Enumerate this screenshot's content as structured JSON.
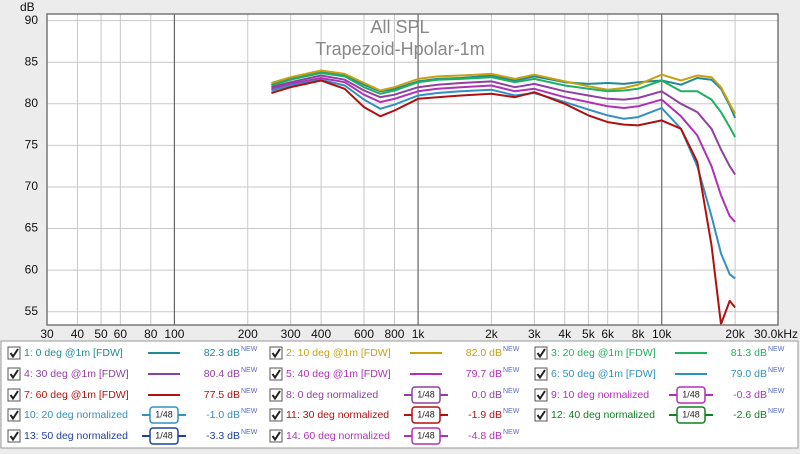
{
  "chart_data": {
    "type": "line",
    "title": "All SPL",
    "subtitle": "Trapezoid-Hpolar-1m",
    "y_label": "dB",
    "log_x": true,
    "grid": true,
    "xlim": [
      30,
      30000
    ],
    "ylim": [
      53.4,
      90.8
    ],
    "xticks": [
      30,
      40,
      50,
      60,
      80,
      100,
      200,
      300,
      400,
      600,
      800,
      {
        "value": 1000,
        "label": "1k"
      },
      {
        "value": 2000,
        "label": "2k"
      },
      {
        "value": 3000,
        "label": "3k"
      },
      {
        "value": 4000,
        "label": "4k"
      },
      {
        "value": 5000,
        "label": "5k"
      },
      {
        "value": 6000,
        "label": "6k"
      },
      {
        "value": 8000,
        "label": "8k"
      },
      {
        "value": 10000,
        "label": "10k"
      },
      {
        "value": 20000,
        "label": "20k"
      },
      {
        "value": 30000,
        "label": "30.0kHz"
      }
    ],
    "yticks": [
      55,
      60,
      65,
      70,
      75,
      80,
      85,
      90
    ],
    "x": [
      250,
      300,
      400,
      500,
      600,
      700,
      800,
      1000,
      1200,
      1500,
      2000,
      2500,
      3000,
      4000,
      5000,
      6000,
      7000,
      8000,
      10000,
      12000,
      14000,
      16000,
      17500,
      19000,
      20000
    ],
    "badge": "NEW",
    "smoothing_label": "1/48",
    "series": [
      {
        "name": "1: 0 deg @1m [FDW]",
        "color": "#1f8a96",
        "value_label": "82.3 dB",
        "values": [
          82.3,
          83.0,
          83.9,
          83.5,
          82.3,
          81.5,
          81.8,
          82.7,
          83.0,
          83.1,
          83.4,
          82.8,
          83.3,
          82.6,
          82.4,
          82.5,
          82.4,
          82.6,
          82.8,
          82.3,
          83.1,
          82.9,
          81.8,
          79.8,
          78.3
        ]
      },
      {
        "name": "2: 10 deg @1m [FDW]",
        "color": "#c8a010",
        "value_label": "82.0 dB",
        "values": [
          82.5,
          83.2,
          84.0,
          83.6,
          82.5,
          81.6,
          82.0,
          83.0,
          83.3,
          83.4,
          83.6,
          83.0,
          83.5,
          82.7,
          82.1,
          81.7,
          81.9,
          82.3,
          83.5,
          82.8,
          83.4,
          83.2,
          82.0,
          80.0,
          78.8
        ]
      },
      {
        "name": "3: 20 deg @1m [FDW]",
        "color": "#20b060",
        "value_label": "81.3 dB",
        "values": [
          82.2,
          82.9,
          83.7,
          83.3,
          82.0,
          81.2,
          81.6,
          82.6,
          82.9,
          83.0,
          83.2,
          82.6,
          83.0,
          82.2,
          81.8,
          81.5,
          81.6,
          81.8,
          82.8,
          81.5,
          81.5,
          80.5,
          79.0,
          77.2,
          76.0
        ]
      },
      {
        "name": "4: 30 deg @1m [FDW]",
        "color": "#9040a0",
        "value_label": "80.4 dB",
        "values": [
          82.0,
          82.6,
          83.4,
          82.9,
          81.6,
          80.8,
          81.1,
          82.0,
          82.3,
          82.5,
          82.7,
          82.0,
          82.4,
          81.5,
          81.0,
          80.6,
          80.5,
          80.7,
          81.5,
          80.0,
          79.0,
          77.0,
          74.5,
          72.5,
          71.5
        ]
      },
      {
        "name": "5: 40 deg @1m [FDW]",
        "color": "#b030b8",
        "value_label": "79.7 dB",
        "values": [
          81.8,
          82.4,
          83.1,
          82.6,
          81.1,
          80.2,
          80.6,
          81.5,
          81.8,
          82.0,
          82.2,
          81.5,
          81.8,
          80.8,
          80.2,
          79.7,
          79.5,
          79.7,
          80.5,
          78.5,
          76.2,
          72.5,
          69.0,
          66.5,
          65.8
        ]
      },
      {
        "name": "6: 50 deg @1m [FDW]",
        "color": "#3090c0",
        "value_label": "79.0 dB",
        "values": [
          81.6,
          82.2,
          82.9,
          82.2,
          80.5,
          79.4,
          79.9,
          81.0,
          81.3,
          81.5,
          81.7,
          81.0,
          81.3,
          80.2,
          79.3,
          78.6,
          78.2,
          78.4,
          79.5,
          77.0,
          72.5,
          66.5,
          62.0,
          59.5,
          59.0
        ]
      },
      {
        "name": "7: 60 deg @1m [FDW]",
        "color": "#b01010",
        "value_label": "77.5 dB",
        "values": [
          81.3,
          82.0,
          82.8,
          81.8,
          79.6,
          78.5,
          79.2,
          80.6,
          80.8,
          81.0,
          81.2,
          80.8,
          81.4,
          80.0,
          78.6,
          77.8,
          77.5,
          77.4,
          78.0,
          77.0,
          73.0,
          63.0,
          53.5,
          56.3,
          55.5
        ]
      }
    ],
    "legend_extra": [
      {
        "name": "8: 0 deg normalized",
        "color": "#9040a0",
        "value_label": "0.0 dB"
      },
      {
        "name": "9: 10 deg normalized",
        "color": "#b030b8",
        "value_label": "-0.3 dB"
      },
      {
        "name": "10: 20 deg normalized",
        "color": "#3090c0",
        "value_label": "-1.0 dB"
      },
      {
        "name": "11: 30 deg normalized",
        "color": "#b01010",
        "value_label": "-1.9 dB"
      },
      {
        "name": "12: 40 deg normalized",
        "color": "#108020",
        "value_label": "-2.6 dB"
      },
      {
        "name": "13: 50 deg normalized",
        "color": "#2040a0",
        "value_label": "-3.3 dB"
      },
      {
        "name": "14: 60 deg normalized",
        "color": "#b030b8",
        "value_label": "-4.8 dB"
      }
    ]
  }
}
